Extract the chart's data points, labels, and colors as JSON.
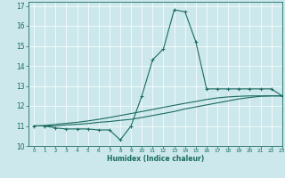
{
  "xlabel": "Humidex (Indice chaleur)",
  "background_color": "#cce8ec",
  "line_color": "#1a6b60",
  "grid_color": "#ffffff",
  "xlim": [
    -0.5,
    23
  ],
  "ylim": [
    10,
    17.2
  ],
  "yticks": [
    10,
    11,
    12,
    13,
    14,
    15,
    16,
    17
  ],
  "xticks": [
    0,
    1,
    2,
    3,
    4,
    5,
    6,
    7,
    8,
    9,
    10,
    11,
    12,
    13,
    14,
    15,
    16,
    17,
    18,
    19,
    20,
    21,
    22,
    23
  ],
  "curve1_x": [
    0,
    1,
    2,
    3,
    4,
    5,
    6,
    7,
    8,
    9,
    10,
    11,
    12,
    13,
    14,
    15,
    16,
    17,
    18,
    19,
    20,
    21,
    22,
    23
  ],
  "curve1_y": [
    11.0,
    11.0,
    10.9,
    10.85,
    10.85,
    10.85,
    10.8,
    10.8,
    10.3,
    11.0,
    12.5,
    14.3,
    14.85,
    16.8,
    16.7,
    15.2,
    12.85,
    12.85,
    12.85,
    12.85,
    12.85,
    12.85,
    12.85,
    12.5
  ],
  "curve2_x": [
    0,
    1,
    2,
    3,
    4,
    5,
    6,
    7,
    8,
    9,
    10,
    11,
    12,
    13,
    14,
    15,
    16,
    17,
    18,
    19,
    20,
    21,
    22,
    23
  ],
  "curve2_y": [
    11.0,
    11.0,
    11.0,
    11.05,
    11.08,
    11.12,
    11.18,
    11.22,
    11.28,
    11.33,
    11.42,
    11.52,
    11.62,
    11.72,
    11.85,
    11.95,
    12.05,
    12.15,
    12.25,
    12.35,
    12.42,
    12.48,
    12.5,
    12.5
  ],
  "curve3_x": [
    0,
    1,
    2,
    3,
    4,
    5,
    6,
    7,
    8,
    9,
    10,
    11,
    12,
    13,
    14,
    15,
    16,
    17,
    18,
    19,
    20,
    21,
    22,
    23
  ],
  "curve3_y": [
    11.0,
    11.02,
    11.08,
    11.13,
    11.18,
    11.25,
    11.33,
    11.42,
    11.52,
    11.62,
    11.72,
    11.82,
    11.93,
    12.03,
    12.13,
    12.22,
    12.32,
    12.4,
    12.45,
    12.48,
    12.5,
    12.5,
    12.5,
    12.5
  ]
}
